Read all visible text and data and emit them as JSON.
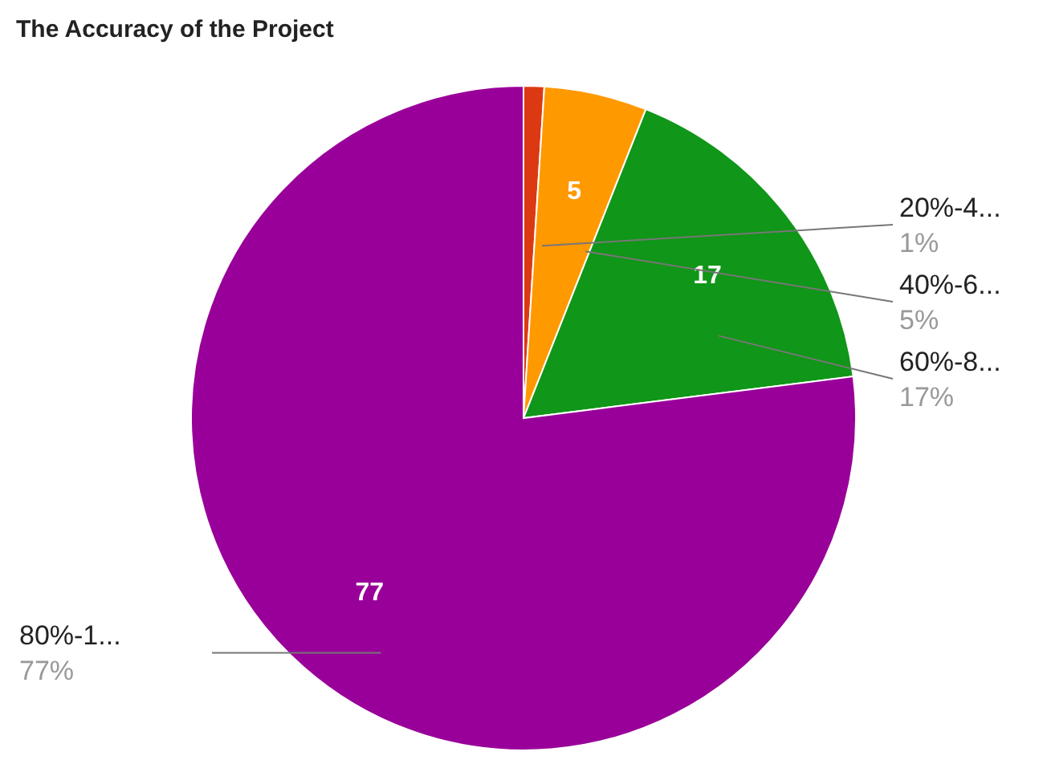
{
  "chart_data": {
    "type": "pie",
    "title": "The Accuracy of the Project",
    "categories": [
      "20%-4...",
      "40%-6...",
      "60%-8...",
      "80%-1..."
    ],
    "values": [
      1,
      5,
      17,
      77
    ],
    "colors": [
      "#dc3912",
      "#ff9900",
      "#109618",
      "#990099"
    ],
    "value_labels": [
      null,
      "5",
      "17",
      "77"
    ],
    "annotations": [
      "1%",
      "5%",
      "17%",
      "77%"
    ],
    "legend": false
  }
}
